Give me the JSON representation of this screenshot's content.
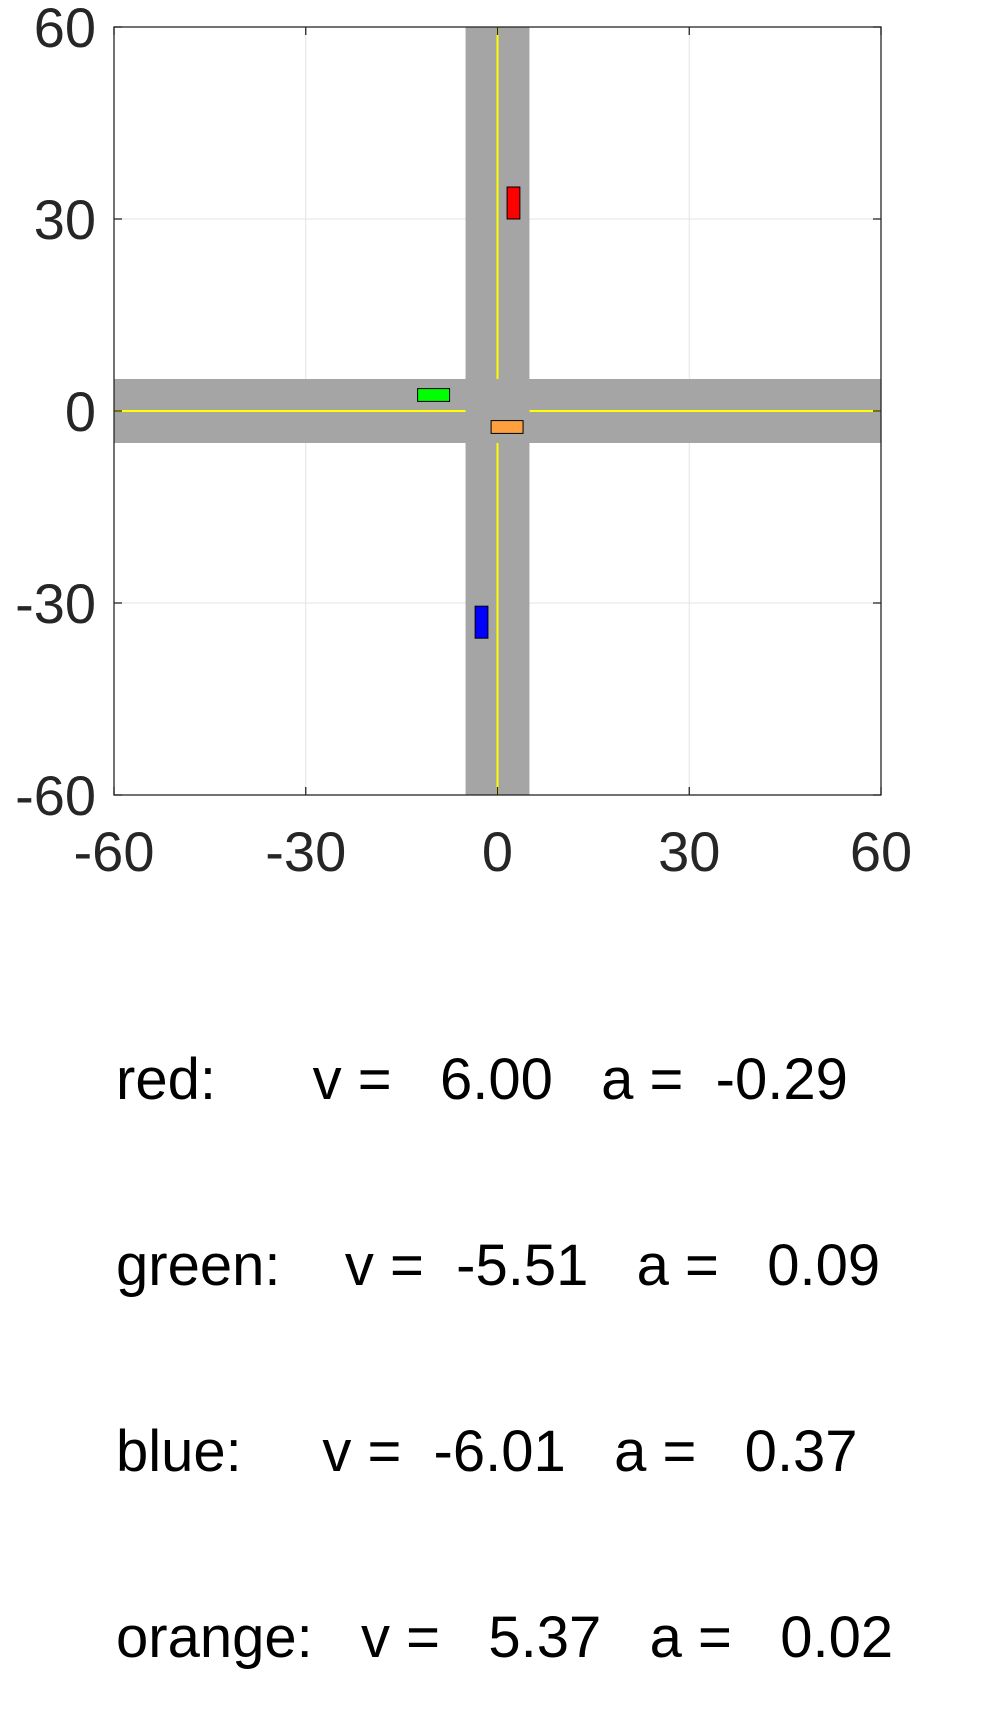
{
  "chart_data": {
    "type": "scatter",
    "title": "",
    "xlabel": "",
    "ylabel": "",
    "xlim": [
      -60,
      60
    ],
    "ylim": [
      -60,
      60
    ],
    "xticks": [
      -60,
      -30,
      0,
      30,
      60
    ],
    "yticks": [
      -60,
      -30,
      0,
      30,
      60
    ],
    "xtick_labels": [
      "-60",
      "-30",
      "0",
      "30",
      "60"
    ],
    "ytick_labels": [
      "-60",
      "-30",
      "0",
      "30",
      "60"
    ],
    "grid": true,
    "roads": {
      "half_width": 5,
      "color": "#a5a5a5",
      "center_line_color": "#ffff00"
    },
    "vehicles": [
      {
        "name": "red",
        "color": "#ff0000",
        "x": 2.5,
        "y": 32.5,
        "length": 5,
        "width": 2,
        "orientation": "vertical"
      },
      {
        "name": "green",
        "color": "#00ff00",
        "x": -10.0,
        "y": 2.5,
        "length": 5,
        "width": 2,
        "orientation": "horizontal"
      },
      {
        "name": "blue",
        "color": "#0000ff",
        "x": -2.5,
        "y": -33.0,
        "length": 5,
        "width": 2,
        "orientation": "vertical"
      },
      {
        "name": "orange",
        "color": "#ffa040",
        "x": 1.5,
        "y": -2.5,
        "length": 5,
        "width": 2,
        "orientation": "horizontal"
      }
    ]
  },
  "status_lines": [
    "red:      v =   6.00   a =  -0.29",
    "green:    v =  -5.51   a =   0.09",
    "blue:     v =  -6.01   a =   0.37",
    "orange:   v =   5.37   a =   0.02"
  ]
}
